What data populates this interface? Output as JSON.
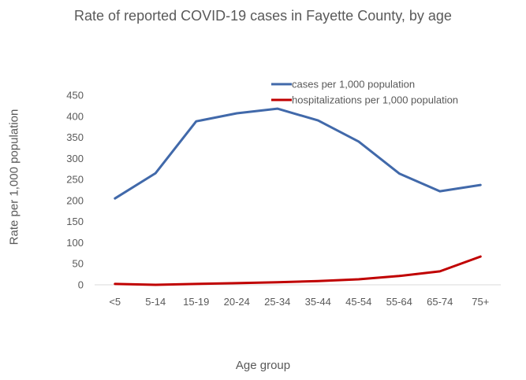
{
  "chart_data": {
    "type": "line",
    "title": "Rate of reported COVID-19 cases in Fayette County, by age",
    "xlabel": "Age group",
    "ylabel": "Rate per 1,000 population",
    "categories": [
      "<5",
      "5-14",
      "15-19",
      "20-24",
      "25-34",
      "35-44",
      "45-54",
      "55-64",
      "65-74",
      "75+"
    ],
    "ylim": [
      0,
      450
    ],
    "yticks": [
      0,
      50,
      100,
      150,
      200,
      250,
      300,
      350,
      400,
      450
    ],
    "grid": false,
    "legend_position": "top-right",
    "series": [
      {
        "name": "cases per 1,000 population",
        "color": "#4169AA",
        "values": [
          205,
          265,
          388,
          407,
          418,
          390,
          340,
          264,
          222,
          237
        ]
      },
      {
        "name": "hospitalizations per 1,000 population",
        "color": "#C00000",
        "values": [
          2,
          0,
          2,
          4,
          6,
          9,
          13,
          21,
          32,
          67
        ]
      }
    ]
  }
}
